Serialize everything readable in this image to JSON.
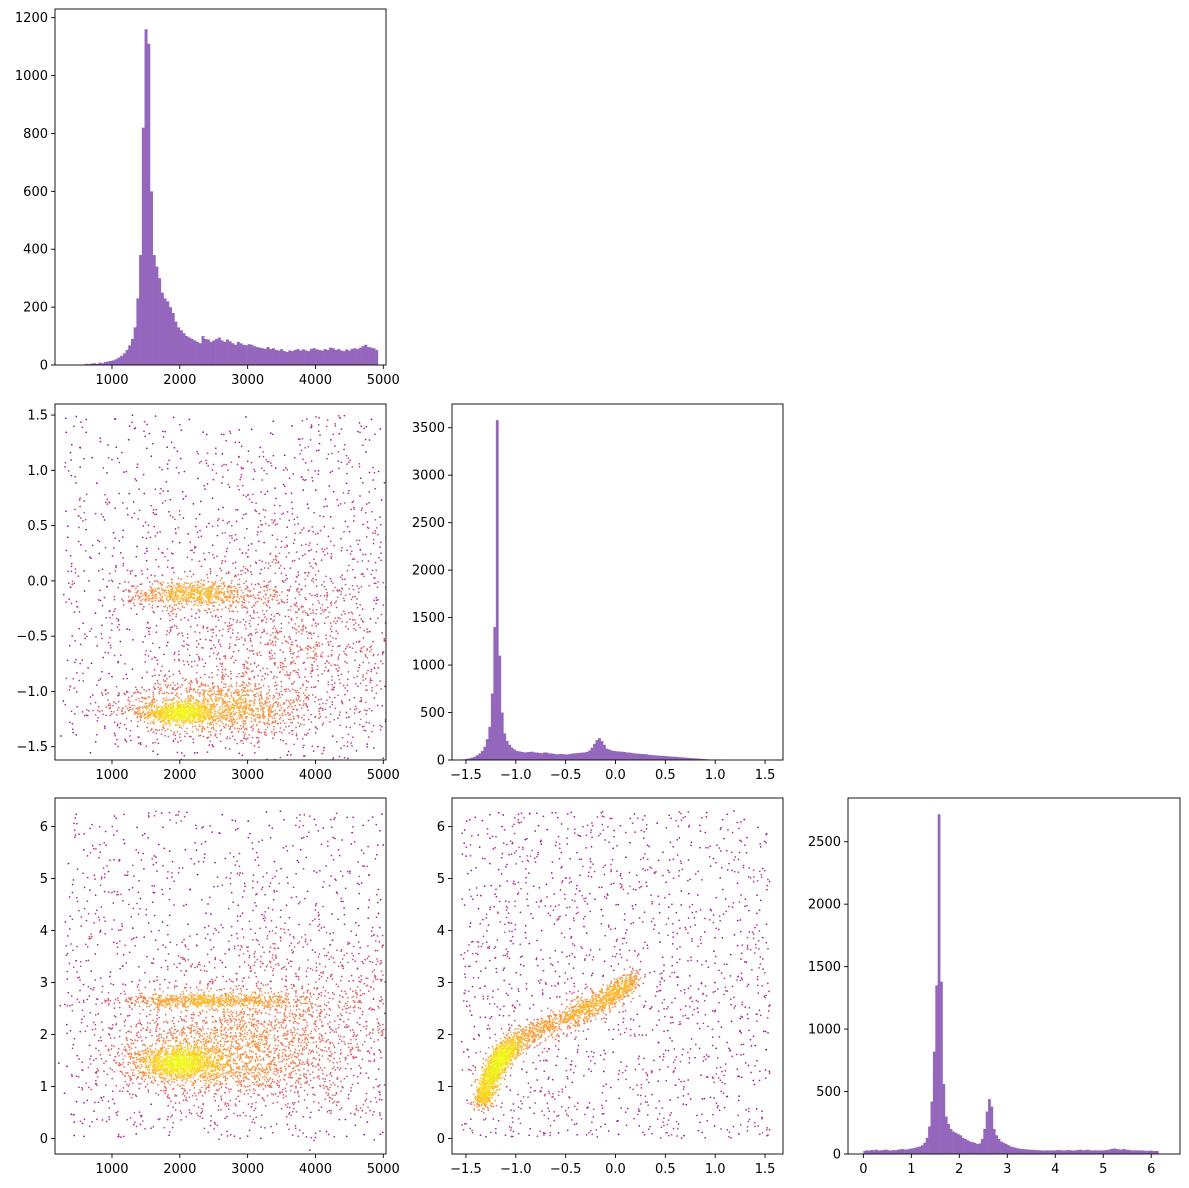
{
  "chart_data": [
    {
      "id": "hist_var1",
      "type": "histogram",
      "x_range": [
        160,
        5040
      ],
      "ylim": [
        0,
        1230
      ],
      "xticks": [
        1000,
        2000,
        3000,
        4000,
        5000
      ],
      "yticks": [
        0,
        200,
        400,
        600,
        800,
        1000,
        1200
      ],
      "color": "#9467bd",
      "bin_width": 40,
      "bins_start": 600,
      "counts": [
        4,
        3,
        5,
        6,
        4,
        8,
        6,
        10,
        12,
        14,
        16,
        20,
        26,
        32,
        40,
        52,
        68,
        90,
        130,
        230,
        380,
        820,
        1160,
        1110,
        600,
        380,
        340,
        300,
        250,
        230,
        220,
        200,
        180,
        150,
        130,
        120,
        110,
        100,
        95,
        90,
        85,
        80,
        75,
        100,
        90,
        88,
        80,
        85,
        90,
        95,
        85,
        80,
        88,
        82,
        75,
        70,
        80,
        75,
        70,
        68,
        72,
        70,
        65,
        62,
        60,
        58,
        56,
        62,
        55,
        58,
        52,
        50,
        55,
        48,
        45,
        50,
        48,
        52,
        55,
        50,
        54,
        50,
        48,
        56,
        58,
        54,
        52,
        50,
        55,
        52,
        60,
        58,
        52,
        55,
        50,
        48,
        54,
        50,
        56,
        58,
        55,
        60,
        65,
        70,
        62,
        60,
        58,
        52
      ]
    },
    {
      "id": "scatter_var1_var2",
      "type": "scatter",
      "xlim": [
        160,
        5040
      ],
      "ylim": [
        -1.62,
        1.6
      ],
      "xticks": [
        1000,
        2000,
        3000,
        4000,
        5000
      ],
      "yticks": [
        -1.5,
        -1.0,
        -0.5,
        0.0,
        0.5,
        1.0,
        1.5
      ],
      "ytick_labels": [
        "−1.5",
        "−1.0",
        "−0.5",
        "0.0",
        "0.5",
        "1.0",
        "1.5"
      ],
      "colormap": "plasma (point density)",
      "clusters": [
        {
          "x_center": 2000,
          "x_spread": 250,
          "y_center": -1.2,
          "y_spread": 0.04,
          "n": 700
        },
        {
          "x_center": 2500,
          "x_spread": 700,
          "y_center": -1.15,
          "y_spread": 0.12,
          "n": 1100
        },
        {
          "x_center": 2200,
          "x_spread": 500,
          "y_center": -0.12,
          "y_spread": 0.06,
          "n": 650
        },
        {
          "x_center": 3600,
          "x_spread": 1200,
          "y_center": -0.6,
          "y_spread": 0.6,
          "n": 1600
        }
      ],
      "uniform_background": {
        "x_range": [
          300,
          5000
        ],
        "y_range": [
          -1.5,
          1.5
        ],
        "n": 1100
      }
    },
    {
      "id": "hist_var2",
      "type": "histogram",
      "x_range": [
        -1.64,
        1.68
      ],
      "ylim": [
        0,
        3750
      ],
      "xticks": [
        -1.5,
        -1.0,
        -0.5,
        0.0,
        0.5,
        1.0,
        1.5
      ],
      "xtick_labels": [
        "−1.5",
        "−1.0",
        "−0.5",
        "0.0",
        "0.5",
        "1.0",
        "1.5"
      ],
      "yticks": [
        0,
        500,
        1000,
        1500,
        2000,
        2500,
        3000,
        3500
      ],
      "color": "#9467bd",
      "bin_width": 0.025,
      "bins_start": -1.55,
      "counts": [
        5,
        8,
        12,
        18,
        25,
        35,
        50,
        70,
        95,
        140,
        220,
        350,
        700,
        1400,
        3580,
        1100,
        500,
        280,
        200,
        160,
        130,
        110,
        95,
        90,
        85,
        80,
        82,
        85,
        88,
        80,
        78,
        75,
        72,
        80,
        78,
        70,
        68,
        65,
        60,
        62,
        64,
        60,
        58,
        62,
        68,
        70,
        72,
        75,
        78,
        80,
        85,
        100,
        130,
        170,
        210,
        230,
        200,
        160,
        120,
        110,
        100,
        95,
        92,
        90,
        88,
        85,
        80,
        78,
        75,
        70,
        68,
        66,
        64,
        62,
        60,
        55,
        52,
        50,
        48,
        46,
        44,
        42,
        40,
        38,
        36,
        35,
        33,
        30,
        28,
        26,
        24,
        22,
        20,
        18,
        16,
        14,
        12,
        10,
        8,
        6,
        5,
        4,
        3,
        3
      ]
    },
    {
      "id": "scatter_var1_var3",
      "type": "scatter",
      "xlim": [
        160,
        5040
      ],
      "ylim": [
        -0.3,
        6.55
      ],
      "xticks": [
        1000,
        2000,
        3000,
        4000,
        5000
      ],
      "yticks": [
        0,
        1,
        2,
        3,
        4,
        5,
        6
      ],
      "colormap": "plasma (point density)",
      "clusters": [
        {
          "x_center": 2000,
          "x_spread": 300,
          "y_center": 1.45,
          "y_spread": 0.15,
          "n": 1100
        },
        {
          "x_center": 2600,
          "x_spread": 800,
          "y_center": 1.6,
          "y_spread": 0.45,
          "n": 1400
        },
        {
          "x_center": 2500,
          "x_spread": 700,
          "y_center": 2.65,
          "y_spread": 0.06,
          "n": 650
        },
        {
          "x_center": 3600,
          "x_spread": 1100,
          "y_center": 2.2,
          "y_spread": 0.9,
          "n": 1300
        }
      ],
      "uniform_background": {
        "x_range": [
          300,
          5000
        ],
        "y_range": [
          0,
          6.3
        ],
        "n": 1200
      }
    },
    {
      "id": "scatter_var2_var3",
      "type": "scatter",
      "xlim": [
        -1.64,
        1.68
      ],
      "ylim": [
        -0.3,
        6.55
      ],
      "xticks": [
        -1.5,
        -1.0,
        -0.5,
        0.0,
        0.5,
        1.0,
        1.5
      ],
      "xtick_labels": [
        "−1.5",
        "−1.0",
        "−0.5",
        "0.0",
        "0.5",
        "1.0",
        "1.5"
      ],
      "yticks": [
        0,
        1,
        2,
        3,
        4,
        5,
        6
      ],
      "colormap": "plasma (point density)",
      "curve": [
        [
          -1.35,
          0.7
        ],
        [
          -1.25,
          1.2
        ],
        [
          -1.15,
          1.55
        ],
        [
          -1.0,
          1.85
        ],
        [
          -0.8,
          2.05
        ],
        [
          -0.5,
          2.3
        ],
        [
          -0.3,
          2.5
        ],
        [
          -0.1,
          2.65
        ],
        [
          0.05,
          2.85
        ],
        [
          0.2,
          3.1
        ]
      ],
      "curve_points": 2600,
      "curve_spread": 0.08,
      "uniform_background": {
        "x_range": [
          -1.55,
          1.55
        ],
        "y_range": [
          0,
          6.3
        ],
        "n": 1600
      }
    },
    {
      "id": "hist_var3",
      "type": "histogram",
      "x_range": [
        -0.32,
        6.6
      ],
      "ylim": [
        0,
        2850
      ],
      "xticks": [
        0,
        1,
        2,
        3,
        4,
        5,
        6
      ],
      "yticks": [
        0,
        500,
        1000,
        1500,
        2000,
        2500
      ],
      "color": "#9467bd",
      "bin_width": 0.05,
      "bins_start": 0,
      "counts": [
        25,
        30,
        28,
        32,
        30,
        35,
        28,
        30,
        32,
        35,
        30,
        28,
        32,
        30,
        35,
        38,
        40,
        35,
        38,
        42,
        45,
        50,
        55,
        60,
        70,
        90,
        130,
        220,
        420,
        820,
        1350,
        2720,
        1380,
        560,
        300,
        240,
        200,
        180,
        170,
        160,
        150,
        130,
        120,
        110,
        100,
        95,
        90,
        80,
        85,
        120,
        200,
        340,
        440,
        380,
        200,
        150,
        120,
        100,
        90,
        80,
        70,
        60,
        55,
        50,
        45,
        42,
        40,
        38,
        36,
        35,
        33,
        32,
        30,
        30,
        28,
        28,
        30,
        28,
        30,
        28,
        30,
        32,
        30,
        28,
        30,
        32,
        30,
        28,
        30,
        32,
        35,
        30,
        32,
        35,
        30,
        28,
        30,
        28,
        30,
        28,
        30,
        32,
        35,
        40,
        45,
        40,
        38,
        35,
        40,
        35,
        33,
        30,
        28,
        30,
        28,
        30,
        28,
        26,
        25,
        28,
        26,
        24,
        25
      ]
    }
  ]
}
